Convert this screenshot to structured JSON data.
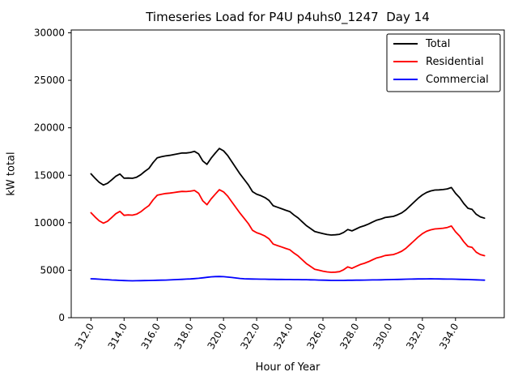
{
  "chart_data": {
    "type": "line",
    "title": "Timeseries Load for P4U p4uhs0_1247  Day 14",
    "xlabel": "Hour of Year",
    "ylabel": "kW total",
    "grid": false,
    "legend_position": "upper right",
    "xlim": [
      310.81,
      336.94
    ],
    "ylim": [
      0,
      30300
    ],
    "xticks": [
      312,
      314,
      316,
      318,
      320,
      322,
      324,
      326,
      328,
      330,
      332,
      334
    ],
    "xtick_labels": [
      "312.0",
      "314.0",
      "316.0",
      "318.0",
      "320.0",
      "322.0",
      "324.0",
      "326.0",
      "328.0",
      "330.0",
      "332.0",
      "334.0"
    ],
    "yticks": [
      0,
      5000,
      10000,
      15000,
      20000,
      25000,
      30000
    ],
    "ytick_labels": [
      "0",
      "5000",
      "10000",
      "15000",
      "20000",
      "25000",
      "30000"
    ],
    "x": [
      312.0,
      312.25,
      312.5,
      312.75,
      313.0,
      313.25,
      313.5,
      313.75,
      314.0,
      314.25,
      314.5,
      314.75,
      315.0,
      315.25,
      315.5,
      315.75,
      316.0,
      316.25,
      316.5,
      316.75,
      317.0,
      317.25,
      317.5,
      317.75,
      318.0,
      318.25,
      318.5,
      318.75,
      319.0,
      319.25,
      319.5,
      319.75,
      320.0,
      320.25,
      320.5,
      320.75,
      321.0,
      321.25,
      321.5,
      321.75,
      322.0,
      322.25,
      322.5,
      322.75,
      323.0,
      323.25,
      323.5,
      323.75,
      324.0,
      324.25,
      324.5,
      324.75,
      325.0,
      325.25,
      325.5,
      325.75,
      326.0,
      326.25,
      326.5,
      326.75,
      327.0,
      327.25,
      327.5,
      327.75,
      328.0,
      328.25,
      328.5,
      328.75,
      329.0,
      329.25,
      329.5,
      329.75,
      330.0,
      330.25,
      330.5,
      330.75,
      331.0,
      331.25,
      331.5,
      331.75,
      332.0,
      332.25,
      332.5,
      332.75,
      333.0,
      333.25,
      333.5,
      333.75,
      334.0,
      334.25,
      334.5,
      334.75,
      335.0,
      335.25,
      335.5,
      335.75
    ],
    "series": [
      {
        "name": "Total",
        "color": "#000000",
        "values": [
          15150,
          14680,
          14250,
          13970,
          14150,
          14520,
          14900,
          15130,
          14690,
          14710,
          14680,
          14790,
          15050,
          15410,
          15720,
          16330,
          16840,
          16950,
          17040,
          17100,
          17180,
          17270,
          17340,
          17340,
          17400,
          17510,
          17250,
          16500,
          16150,
          16800,
          17330,
          17820,
          17570,
          17080,
          16430,
          15780,
          15130,
          14550,
          13980,
          13270,
          13010,
          12850,
          12650,
          12340,
          11790,
          11630,
          11480,
          11320,
          11170,
          10810,
          10510,
          10100,
          9700,
          9390,
          9080,
          8960,
          8850,
          8760,
          8710,
          8730,
          8780,
          8980,
          9290,
          9140,
          9350,
          9550,
          9690,
          9870,
          10080,
          10280,
          10390,
          10550,
          10610,
          10670,
          10830,
          11040,
          11350,
          11760,
          12170,
          12580,
          12930,
          13190,
          13350,
          13440,
          13460,
          13490,
          13560,
          13710,
          13100,
          12640,
          12030,
          11520,
          11400,
          10890,
          10620,
          10480
        ]
      },
      {
        "name": "Residential",
        "color": "#ff0000",
        "values": [
          11050,
          10600,
          10200,
          9950,
          10150,
          10550,
          10950,
          11200,
          10780,
          10820,
          10800,
          10900,
          11150,
          11500,
          11800,
          12400,
          12900,
          13000,
          13080,
          13120,
          13180,
          13250,
          13300,
          13280,
          13320,
          13400,
          13100,
          12300,
          11900,
          12500,
          13000,
          13480,
          13250,
          12800,
          12200,
          11600,
          11000,
          10450,
          9900,
          9200,
          8950,
          8800,
          8600,
          8300,
          7750,
          7600,
          7450,
          7300,
          7150,
          6800,
          6500,
          6100,
          5700,
          5400,
          5100,
          5000,
          4900,
          4820,
          4780,
          4800,
          4850,
          5050,
          5350,
          5200,
          5400,
          5600,
          5730,
          5900,
          6100,
          6300,
          6400,
          6550,
          6600,
          6650,
          6800,
          7000,
          7300,
          7700,
          8100,
          8500,
          8850,
          9100,
          9250,
          9350,
          9380,
          9420,
          9500,
          9650,
          9050,
          8600,
          8000,
          7500,
          7400,
          6900,
          6650,
          6530
        ]
      },
      {
        "name": "Commercial",
        "color": "#0000ff",
        "values": [
          4100,
          4080,
          4050,
          4020,
          4000,
          3970,
          3950,
          3930,
          3910,
          3890,
          3880,
          3890,
          3900,
          3910,
          3920,
          3930,
          3940,
          3950,
          3960,
          3980,
          4000,
          4020,
          4040,
          4060,
          4080,
          4110,
          4150,
          4200,
          4250,
          4300,
          4330,
          4340,
          4320,
          4280,
          4230,
          4180,
          4130,
          4100,
          4080,
          4070,
          4060,
          4050,
          4050,
          4040,
          4040,
          4030,
          4030,
          4020,
          4020,
          4010,
          4010,
          4000,
          4000,
          3990,
          3980,
          3960,
          3950,
          3940,
          3930,
          3930,
          3930,
          3930,
          3940,
          3940,
          3950,
          3950,
          3960,
          3970,
          3980,
          3980,
          3990,
          4000,
          4010,
          4020,
          4030,
          4040,
          4050,
          4060,
          4070,
          4080,
          4080,
          4090,
          4100,
          4090,
          4080,
          4070,
          4060,
          4060,
          4050,
          4040,
          4030,
          4020,
          4000,
          3990,
          3970,
          3950
        ]
      }
    ]
  }
}
